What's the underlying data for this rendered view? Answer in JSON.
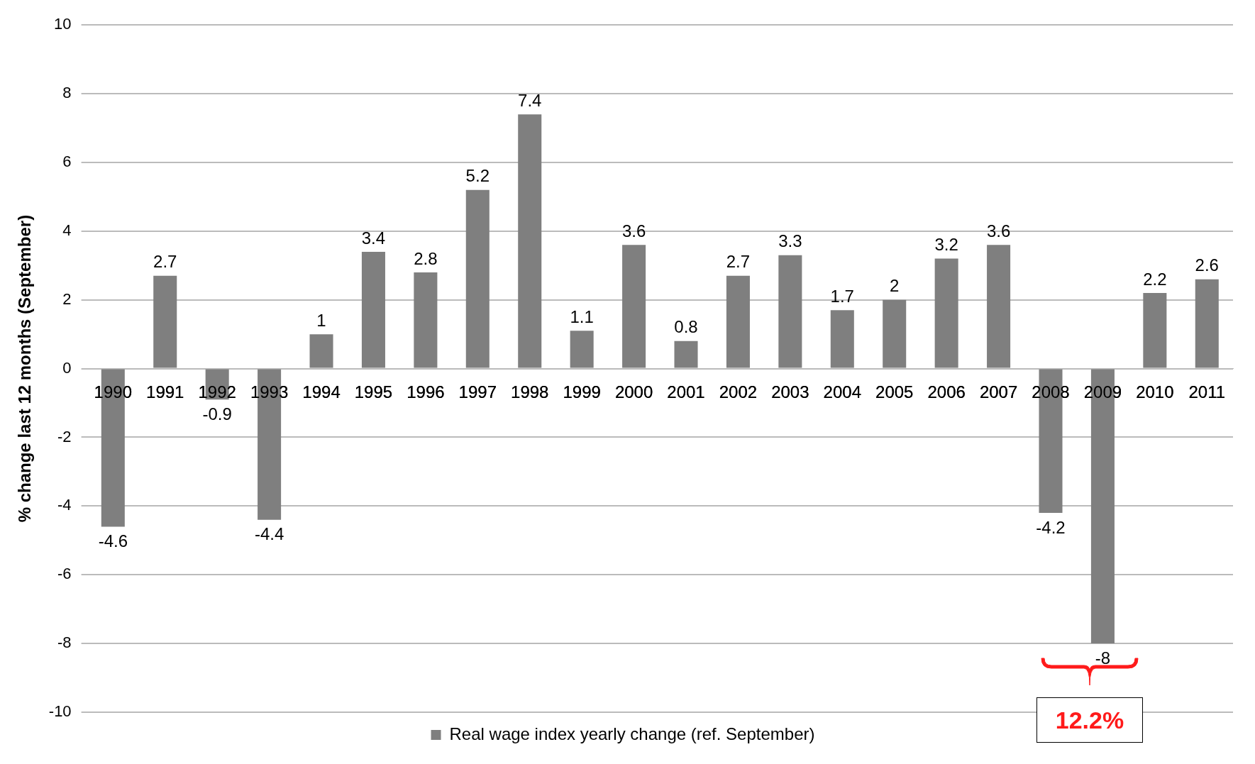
{
  "chart_data": {
    "type": "bar",
    "ylabel": "% change last 12 months (September)",
    "categories": [
      "1990",
      "1991",
      "1992",
      "1993",
      "1994",
      "1995",
      "1996",
      "1997",
      "1998",
      "1999",
      "2000",
      "2001",
      "2002",
      "2003",
      "2004",
      "2005",
      "2006",
      "2007",
      "2008",
      "2009",
      "2010",
      "2011"
    ],
    "series": [
      {
        "name": "Real wage index yearly change (ref. September)",
        "color": "#7f7f7f",
        "values": [
          -4.6,
          2.7,
          -0.9,
          -4.4,
          1,
          3.4,
          2.8,
          5.2,
          7.4,
          1.1,
          3.6,
          0.8,
          2.7,
          3.3,
          1.7,
          2,
          3.2,
          3.6,
          -4.2,
          -8,
          2.2,
          2.6
        ]
      }
    ],
    "ylim": [
      -10,
      10
    ],
    "yticks": [
      -10,
      -8,
      -6,
      -4,
      -2,
      0,
      2,
      4,
      6,
      8,
      10
    ],
    "grid": "y",
    "legend": "bottom",
    "data_labels": true,
    "annotations": [
      "12.2%"
    ]
  }
}
